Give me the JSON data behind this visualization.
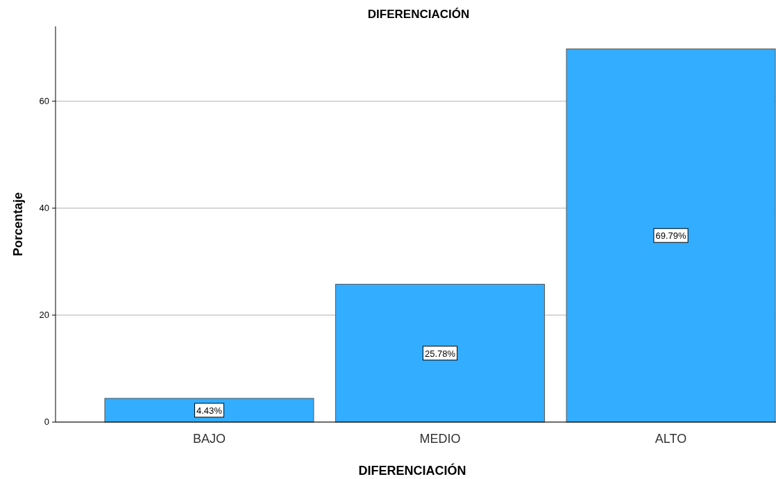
{
  "chart_data": {
    "type": "bar",
    "title": "DIFERENCIACIÓN",
    "xlabel": "DIFERENCIACIÓN",
    "ylabel": "Porcentaje",
    "categories": [
      "BAJO",
      "MEDIO",
      "ALTO"
    ],
    "values": [
      4.43,
      25.78,
      69.79
    ],
    "value_labels": [
      "4.43%",
      "25.78%",
      "69.79%"
    ],
    "color": "#33adff",
    "ylim": [
      0,
      74
    ],
    "yticks": [
      0,
      20,
      40,
      60
    ],
    "grid": "y"
  }
}
